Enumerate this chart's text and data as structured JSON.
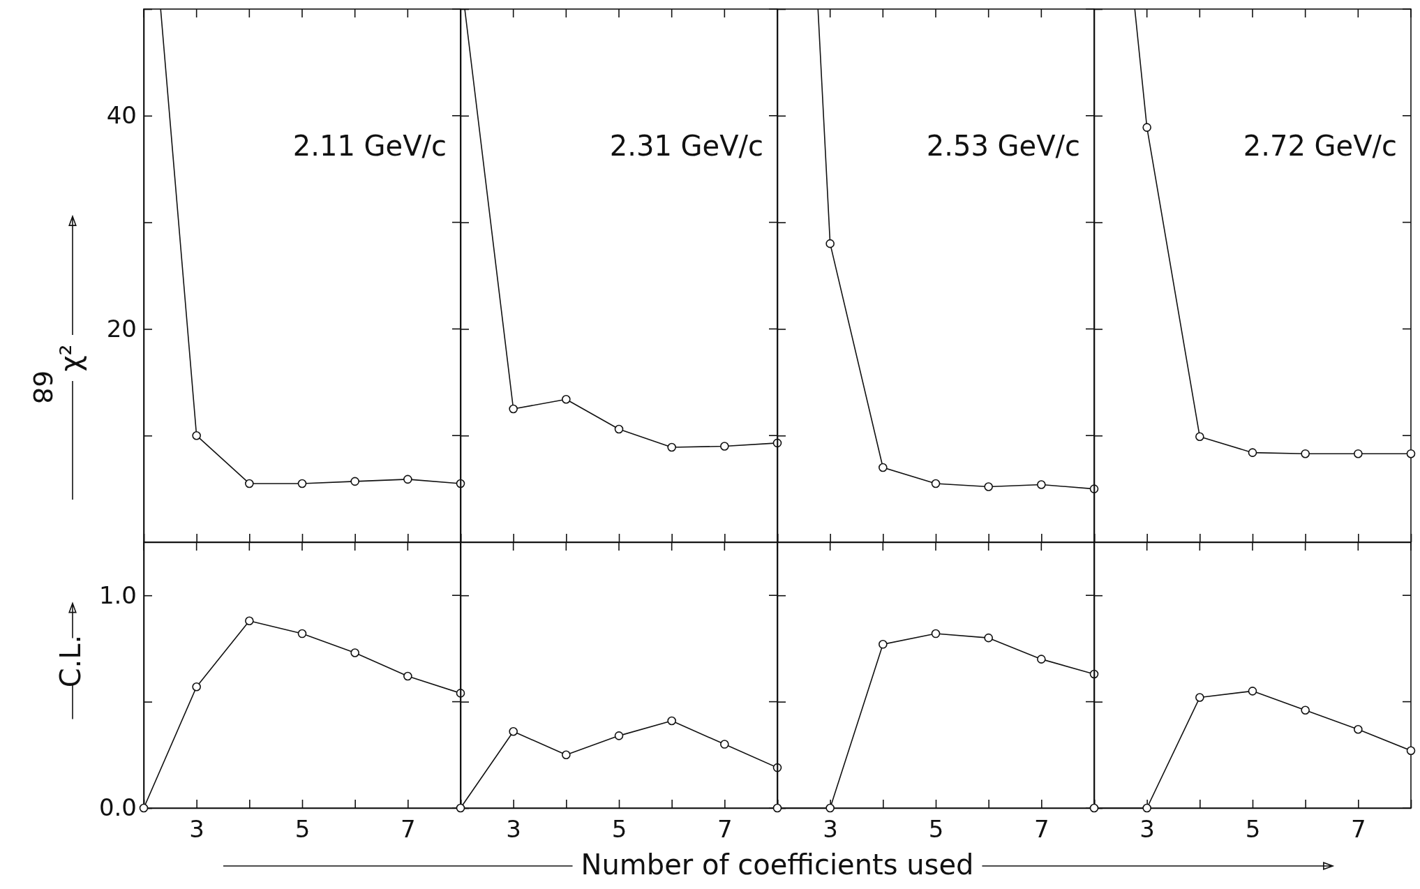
{
  "chart_data": [
    {
      "type": "line",
      "ylabel": "χ²",
      "annotations": [
        "2.11 GeV/c",
        "68"
      ],
      "xlim": [
        2,
        8
      ],
      "ylim": [
        0,
        50
      ],
      "xticks": [
        {
          "value": 2,
          "label": null
        },
        {
          "value": 3,
          "label": null
        },
        {
          "value": 4,
          "label": null
        },
        {
          "value": 5,
          "label": null
        },
        {
          "value": 6,
          "label": null
        },
        {
          "value": 7,
          "label": null
        },
        {
          "value": 8,
          "label": null
        }
      ],
      "yticks": [
        {
          "value": 10,
          "label": null
        },
        20,
        {
          "value": 30,
          "label": null
        },
        40,
        {
          "value": 50,
          "label": null
        }
      ],
      "tick_labels": "y",
      "marker": "circle",
      "line_style": "solid",
      "series": [
        {
          "color": "#111111",
          "x": [
            2.32,
            3,
            4,
            5,
            6,
            7,
            8
          ],
          "values": [
            50,
            10.0,
            5.5,
            5.5,
            5.7,
            5.9,
            5.5
          ]
        }
      ]
    },
    {
      "type": "line",
      "annotations": [
        "2.31 GeV/c"
      ],
      "xlim": [
        2,
        8
      ],
      "ylim": [
        0,
        50
      ],
      "xticks": [
        {
          "value": 2,
          "label": null
        },
        {
          "value": 3,
          "label": null
        },
        {
          "value": 4,
          "label": null
        },
        {
          "value": 5,
          "label": null
        },
        {
          "value": 6,
          "label": null
        },
        {
          "value": 7,
          "label": null
        },
        {
          "value": 8,
          "label": null
        }
      ],
      "yticks": [
        {
          "value": 10,
          "label": null
        },
        {
          "value": 20,
          "label": null
        },
        {
          "value": 30,
          "label": null
        },
        {
          "value": 40,
          "label": null
        },
        {
          "value": 50,
          "label": null
        }
      ],
      "tick_labels": false,
      "marker": "circle",
      "line_style": "solid",
      "series": [
        {
          "color": "#111111",
          "x": [
            2.08,
            3,
            4,
            5,
            6,
            7,
            8
          ],
          "values": [
            50,
            12.5,
            13.4,
            10.6,
            8.9,
            9.0,
            9.3
          ]
        }
      ]
    },
    {
      "type": "line",
      "annotations": [
        "2.53 GeV/c"
      ],
      "xlim": [
        2,
        8
      ],
      "ylim": [
        0,
        50
      ],
      "xticks": [
        {
          "value": 2,
          "label": null
        },
        {
          "value": 3,
          "label": null
        },
        {
          "value": 4,
          "label": null
        },
        {
          "value": 5,
          "label": null
        },
        {
          "value": 6,
          "label": null
        },
        {
          "value": 7,
          "label": null
        },
        {
          "value": 8,
          "label": null
        }
      ],
      "yticks": [
        {
          "value": 10,
          "label": null
        },
        {
          "value": 20,
          "label": null
        },
        {
          "value": 30,
          "label": null
        },
        {
          "value": 40,
          "label": null
        },
        {
          "value": 50,
          "label": null
        }
      ],
      "tick_labels": false,
      "marker": "circle",
      "line_style": "solid",
      "series": [
        {
          "color": "#111111",
          "x": [
            2.77,
            3,
            4,
            5,
            6,
            7,
            8
          ],
          "values": [
            50,
            28.0,
            7.0,
            5.5,
            5.2,
            5.4,
            5.0
          ]
        }
      ]
    },
    {
      "type": "line",
      "annotations": [
        "2.72 GeV/c"
      ],
      "xlim": [
        2,
        8
      ],
      "ylim": [
        0,
        50
      ],
      "xticks": [
        {
          "value": 2,
          "label": null
        },
        {
          "value": 3,
          "label": null
        },
        {
          "value": 4,
          "label": null
        },
        {
          "value": 5,
          "label": null
        },
        {
          "value": 6,
          "label": null
        },
        {
          "value": 7,
          "label": null
        },
        {
          "value": 8,
          "label": null
        }
      ],
      "yticks": [
        {
          "value": 10,
          "label": null
        },
        {
          "value": 20,
          "label": null
        },
        {
          "value": 30,
          "label": null
        },
        {
          "value": 40,
          "label": null
        },
        {
          "value": 50,
          "label": null
        }
      ],
      "tick_labels": false,
      "marker": "circle",
      "line_style": "solid",
      "series": [
        {
          "color": "#111111",
          "x": [
            2.77,
            3,
            4,
            5,
            6,
            7,
            8
          ],
          "values": [
            50,
            38.9,
            9.9,
            8.4,
            8.3,
            8.3,
            8.3
          ]
        }
      ]
    },
    {
      "type": "line",
      "ylabel": "C.L.",
      "xlabel": "Number of coefficients used",
      "x": [
        2,
        3,
        4,
        5,
        6,
        7,
        8
      ],
      "xlim": [
        2,
        8
      ],
      "ylim": [
        0,
        1.25
      ],
      "xticks": [
        {
          "value": 2,
          "label": null
        },
        3,
        {
          "value": 4,
          "label": null
        },
        5,
        {
          "value": 6,
          "label": null
        },
        7,
        {
          "value": 8,
          "label": null
        }
      ],
      "yticks": [
        {
          "value": 0,
          "label": "0.0"
        },
        {
          "value": 0.5,
          "label": null
        },
        {
          "value": 1,
          "label": "1.0"
        }
      ],
      "marker": "circle",
      "line_style": "solid",
      "series": [
        {
          "color": "#111111",
          "values": [
            0.0,
            0.57,
            0.88,
            0.82,
            0.73,
            0.62,
            0.54
          ]
        }
      ]
    },
    {
      "type": "line",
      "x": [
        2,
        3,
        4,
        5,
        6,
        7,
        8
      ],
      "xlim": [
        2,
        8
      ],
      "ylim": [
        0,
        1.25
      ],
      "xticks": [
        {
          "value": 2,
          "label": null
        },
        3,
        {
          "value": 4,
          "label": null
        },
        5,
        {
          "value": 6,
          "label": null
        },
        7,
        {
          "value": 8,
          "label": null
        }
      ],
      "yticks": [
        {
          "value": 0,
          "label": null
        },
        {
          "value": 0.5,
          "label": null
        },
        {
          "value": 1,
          "label": null
        }
      ],
      "tick_labels": "x",
      "marker": "circle",
      "line_style": "solid",
      "series": [
        {
          "color": "#111111",
          "values": [
            0.0,
            0.36,
            0.25,
            0.34,
            0.41,
            0.3,
            0.19
          ]
        }
      ]
    },
    {
      "type": "line",
      "x": [
        2,
        3,
        4,
        5,
        6,
        7,
        8
      ],
      "xlim": [
        2,
        8
      ],
      "ylim": [
        0,
        1.25
      ],
      "xticks": [
        {
          "value": 2,
          "label": null
        },
        3,
        {
          "value": 4,
          "label": null
        },
        5,
        {
          "value": 6,
          "label": null
        },
        7,
        {
          "value": 8,
          "label": null
        }
      ],
      "yticks": [
        {
          "value": 0,
          "label": null
        },
        {
          "value": 0.5,
          "label": null
        },
        {
          "value": 1,
          "label": null
        }
      ],
      "tick_labels": "x",
      "marker": "circle",
      "line_style": "solid",
      "series": [
        {
          "color": "#111111",
          "values": [
            0.0,
            0.0,
            0.77,
            0.82,
            0.8,
            0.7,
            0.63
          ]
        }
      ]
    },
    {
      "type": "line",
      "x": [
        2,
        3,
        4,
        5,
        6,
        7,
        8
      ],
      "xlim": [
        2,
        8
      ],
      "ylim": [
        0,
        1.25
      ],
      "xticks": [
        {
          "value": 2,
          "label": null
        },
        3,
        {
          "value": 4,
          "label": null
        },
        5,
        {
          "value": 6,
          "label": null
        },
        7,
        {
          "value": 8,
          "label": null
        }
      ],
      "yticks": [
        {
          "value": 0,
          "label": null
        },
        {
          "value": 0.5,
          "label": null
        },
        {
          "value": 1,
          "label": null
        }
      ],
      "tick_labels": "x",
      "marker": "circle",
      "line_style": "solid",
      "series": [
        {
          "color": "#111111",
          "values": [
            0.0,
            0.0,
            0.52,
            0.55,
            0.46,
            0.37,
            0.27
          ]
        }
      ]
    }
  ]
}
